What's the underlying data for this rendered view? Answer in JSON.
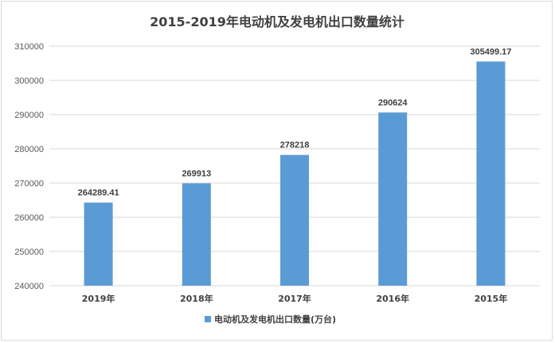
{
  "chart_data": {
    "type": "bar",
    "title": "2015-2019年电动机及发电机出口数量统计",
    "categories": [
      "2019年",
      "2018年",
      "2017年",
      "2016年",
      "2015年"
    ],
    "series": [
      {
        "name": "电动机及发电机出口数量(万台)",
        "values": [
          264289.41,
          269913,
          278218,
          290624,
          305499.17
        ],
        "labels": [
          "264289.41",
          "269913",
          "278218",
          "290624",
          "305499.17"
        ]
      }
    ],
    "ylim": [
      240000,
      310000
    ],
    "yticks": [
      "240000",
      "250000",
      "260000",
      "270000",
      "280000",
      "290000",
      "300000",
      "310000"
    ],
    "grid": true,
    "legend": "bottom",
    "colors": {
      "bar": "#5B9BD5",
      "grid": "#d9d9d9"
    }
  }
}
